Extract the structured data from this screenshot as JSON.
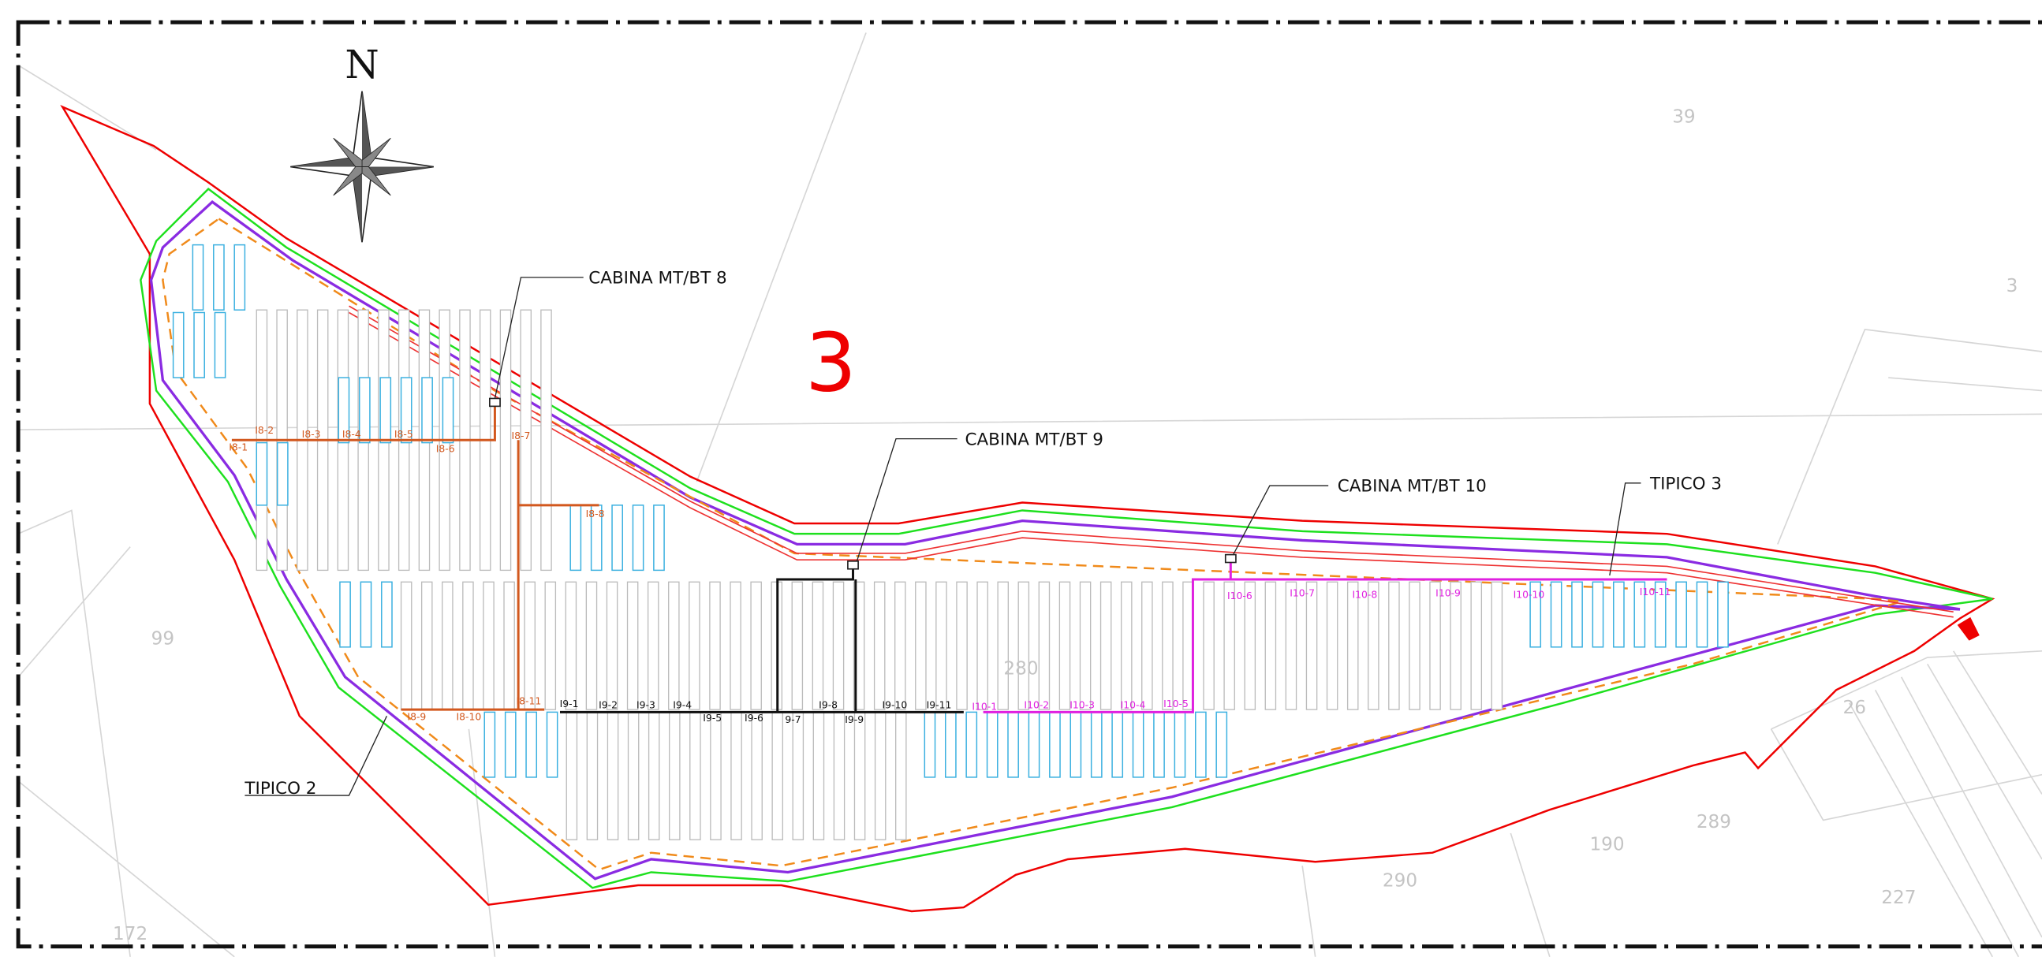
{
  "compass": {
    "north": "N"
  },
  "area_label": "3",
  "callouts": [
    "CABINA MT/BT 8",
    "CABINA MT/BT 9",
    "CABINA MT/BT 10",
    "TIPICO 3",
    "TIPICO 2"
  ],
  "inverters": {
    "cabina_8": [
      "I8-1",
      "I8-2",
      "I8-3",
      "I8-4",
      "I8-5",
      "I8-6",
      "I8-7",
      "I8-8",
      "I8-9",
      "I8-10",
      "I8-11"
    ],
    "cabina_9": [
      "I9-1",
      "I9-2",
      "I9-3",
      "I9-4",
      "I9-5",
      "I9-6",
      "9-7",
      "I9-8",
      "I9-9",
      "I9-10",
      "I9-11"
    ],
    "cabina_10": [
      "I10-1",
      "I10-2",
      "I10-3",
      "I10-4",
      "I10-5",
      "I10-6",
      "I10-7",
      "I10-8",
      "I10-9",
      "I10-10",
      "I10-11"
    ]
  },
  "parcels": [
    "39",
    "3",
    "99",
    "280",
    "190",
    "290",
    "227",
    "172",
    "289",
    "26"
  ]
}
